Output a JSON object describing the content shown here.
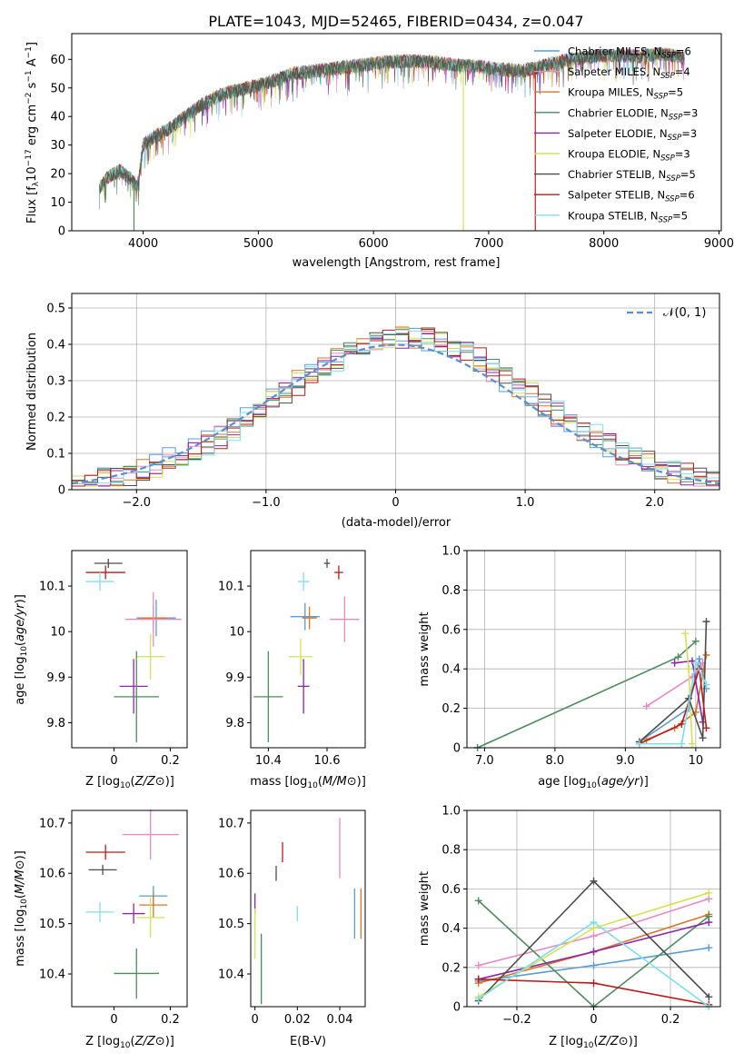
{
  "figure": {
    "title": "PLATE=1043, MJD=52465, FIBERID=0434, z=0.047"
  },
  "legend_entries": [
    {
      "base": "Chabrier MILES, N",
      "sub": "SSP",
      "tail": "=6",
      "color": "#5b9bd5"
    },
    {
      "base": "Salpeter MILES, N",
      "sub": "SSP",
      "tail": "=4",
      "color": "#e78ac3"
    },
    {
      "base": "Kroupa MILES, N",
      "sub": "SSP",
      "tail": "=5",
      "color": "#d6762b"
    },
    {
      "base": "Chabrier ELODIE, N",
      "sub": "SSP",
      "tail": "=3",
      "color": "#4e8a5e"
    },
    {
      "base": "Salpeter ELODIE, N",
      "sub": "SSP",
      "tail": "=3",
      "color": "#8e24aa"
    },
    {
      "base": "Kroupa ELODIE, N",
      "sub": "SSP",
      "tail": "=3",
      "color": "#d4e157"
    },
    {
      "base": "Chabrier STELIB, N",
      "sub": "SSP",
      "tail": "=5",
      "color": "#4d4d4d"
    },
    {
      "base": "Salpeter STELIB, N",
      "sub": "SSP",
      "tail": "=6",
      "color": "#b71c1c"
    },
    {
      "base": "Kroupa STELIB, N",
      "sub": "SSP",
      "tail": "=5",
      "color": "#80deea"
    }
  ],
  "chart_data": [
    {
      "id": "spectrum",
      "type": "line",
      "title": "PLATE=1043, MJD=52465, FIBERID=0434, z=0.047",
      "xlabel": "wavelength [Angstrom, rest frame]",
      "ylabel": "Flux [fλ10⁻¹⁷ erg cm⁻² s⁻¹ A⁻¹]",
      "xlim": [
        3380,
        9020
      ],
      "ylim": [
        0,
        69
      ],
      "xticks": [
        4000,
        5000,
        6000,
        7000,
        8000,
        9000
      ],
      "yticks": [
        0,
        10,
        20,
        30,
        40,
        50,
        60
      ],
      "grid": false,
      "legend": "top-right",
      "continuum": {
        "x": [
          3620,
          3700,
          3800,
          3900,
          3950,
          4000,
          4100,
          4200,
          4300,
          4400,
          4500,
          4700,
          4900,
          5100,
          5300,
          5500,
          5700,
          5900,
          6100,
          6300,
          6500,
          6700,
          6900,
          7100,
          7300,
          7500,
          7700,
          7900,
          8100,
          8300,
          8500,
          8700
        ],
        "y": [
          15,
          19,
          21,
          18,
          15,
          30,
          33,
          35,
          38,
          41,
          44,
          48,
          50,
          52,
          55,
          56,
          57,
          58,
          59,
          59.5,
          59,
          58,
          57.5,
          56.5,
          56,
          58,
          60,
          61,
          61.5,
          61,
          62,
          60.5
        ]
      },
      "drops": [
        {
          "x": 3920,
          "to": 0,
          "color": "#4e8a5e"
        },
        {
          "x": 6780,
          "to": 0,
          "color": "#d4e157"
        },
        {
          "x": 7405,
          "to": 0,
          "color": "#b71c1c"
        }
      ]
    },
    {
      "id": "residuals",
      "type": "area",
      "xlabel": "(data-model)/error",
      "ylabel": "Normed distribution",
      "xlim": [
        -2.5,
        2.5
      ],
      "ylim": [
        0,
        0.54
      ],
      "xticks": [
        -2,
        -1,
        0,
        1,
        2
      ],
      "yticks": [
        0.0,
        0.1,
        0.2,
        0.3,
        0.4,
        0.5
      ],
      "grid": true,
      "legend": "top-right",
      "reference_label": "𝒩(0, 1)",
      "bin_width": 0.1
    },
    {
      "id": "age_vs_Z",
      "type": "scatter",
      "xlabel": "Z [log10(Z/Z⊙)]",
      "ylabel": "age  [log10(age/yr)]",
      "xlim": [
        -0.15,
        0.26
      ],
      "ylim": [
        9.745,
        10.178
      ],
      "xticks": [
        0.0,
        0.2
      ],
      "yticks": [
        9.8,
        9.9,
        10.0,
        10.1
      ],
      "points": [
        {
          "x": -0.02,
          "y": 10.15,
          "xerr": 0.05,
          "yerr": 0.01,
          "color": "#4d4d4d"
        },
        {
          "x": -0.03,
          "y": 10.13,
          "xerr": 0.07,
          "yerr": 0.015,
          "color": "#b71c1c"
        },
        {
          "x": -0.05,
          "y": 10.11,
          "xerr": 0.05,
          "yerr": 0.02,
          "color": "#80deea"
        },
        {
          "x": 0.15,
          "y": 10.03,
          "xerr": 0.07,
          "yerr": 0.04,
          "color": "#5b9bd5"
        },
        {
          "x": 0.14,
          "y": 10.03,
          "xerr": 0.05,
          "yerr": 0.03,
          "color": "#d6762b"
        },
        {
          "x": 0.14,
          "y": 10.027,
          "xerr": 0.1,
          "yerr": 0.06,
          "color": "#e78ac3"
        },
        {
          "x": 0.13,
          "y": 9.945,
          "xerr": 0.05,
          "yerr": 0.05,
          "color": "#d4e157"
        },
        {
          "x": 0.07,
          "y": 9.88,
          "xerr": 0.05,
          "yerr": 0.06,
          "color": "#8e24aa"
        },
        {
          "x": 0.08,
          "y": 9.857,
          "xerr": 0.08,
          "yerr": 0.1,
          "color": "#4e8a5e"
        }
      ]
    },
    {
      "id": "age_vs_mass",
      "type": "scatter",
      "xlabel": "mass [log10(M/M⊙)]",
      "ylabel": "",
      "xlim": [
        10.34,
        10.73
      ],
      "ylim": [
        9.745,
        10.178
      ],
      "xticks": [
        10.4,
        10.6
      ],
      "yticks": [
        9.8,
        9.9,
        10.0,
        10.1
      ],
      "points": [
        {
          "x": 10.6,
          "y": 10.15,
          "xerr": 0.01,
          "yerr": 0.01,
          "color": "#4d4d4d"
        },
        {
          "x": 10.64,
          "y": 10.13,
          "xerr": 0.015,
          "yerr": 0.015,
          "color": "#b71c1c"
        },
        {
          "x": 10.52,
          "y": 10.11,
          "xerr": 0.02,
          "yerr": 0.02,
          "color": "#80deea"
        },
        {
          "x": 10.525,
          "y": 10.033,
          "xerr": 0.05,
          "yerr": 0.03,
          "color": "#5b9bd5"
        },
        {
          "x": 10.54,
          "y": 10.03,
          "xerr": 0.025,
          "yerr": 0.025,
          "color": "#d6762b"
        },
        {
          "x": 10.66,
          "y": 10.027,
          "xerr": 0.05,
          "yerr": 0.05,
          "color": "#e78ac3"
        },
        {
          "x": 10.51,
          "y": 9.945,
          "xerr": 0.04,
          "yerr": 0.04,
          "color": "#d4e157"
        },
        {
          "x": 10.52,
          "y": 9.88,
          "xerr": 0.02,
          "yerr": 0.06,
          "color": "#8e24aa"
        },
        {
          "x": 10.4,
          "y": 9.857,
          "xerr": 0.05,
          "yerr": 0.1,
          "color": "#4e8a5e"
        }
      ]
    },
    {
      "id": "mass_weight_vs_age",
      "type": "line",
      "xlabel": "age  [log10(age/yr)]",
      "ylabel": "mass weight",
      "xlim": [
        6.75,
        10.35
      ],
      "ylim": [
        0,
        1.0
      ],
      "xticks": [
        7,
        8,
        9,
        10
      ],
      "yticks": [
        0.0,
        0.2,
        0.4,
        0.6,
        0.8,
        1.0
      ],
      "grid": true,
      "series": [
        {
          "color": "#5b9bd5",
          "x": [
            9.2,
            9.9,
            10.05,
            10.15
          ],
          "y": [
            0.03,
            0.2,
            0.45,
            0.3
          ]
        },
        {
          "color": "#e78ac3",
          "x": [
            9.3,
            9.95,
            10.1
          ],
          "y": [
            0.21,
            0.36,
            0.43
          ]
        },
        {
          "color": "#d6762b",
          "x": [
            9.3,
            9.7,
            10.0,
            10.15
          ],
          "y": [
            0.04,
            0.1,
            0.18,
            0.47
          ]
        },
        {
          "color": "#4e8a5e",
          "x": [
            6.9,
            9.75,
            10.0
          ],
          "y": [
            0.0,
            0.46,
            0.54
          ]
        },
        {
          "color": "#8e24aa",
          "x": [
            9.7,
            9.95,
            10.1
          ],
          "y": [
            0.43,
            0.44,
            0.13
          ]
        },
        {
          "color": "#d4e157",
          "x": [
            9.85,
            9.9,
            9.95
          ],
          "y": [
            0.58,
            0.4,
            0.02
          ]
        },
        {
          "color": "#4d4d4d",
          "x": [
            9.2,
            9.9,
            10.1,
            10.15
          ],
          "y": [
            0.03,
            0.25,
            0.05,
            0.64
          ]
        },
        {
          "color": "#b71c1c",
          "x": [
            9.2,
            9.8,
            10.05,
            10.15
          ],
          "y": [
            0.02,
            0.12,
            0.4,
            0.1
          ]
        },
        {
          "color": "#80deea",
          "x": [
            9.2,
            9.8,
            10.0,
            10.15
          ],
          "y": [
            0.02,
            0.02,
            0.43,
            0.32
          ]
        }
      ]
    },
    {
      "id": "mass_vs_Z",
      "type": "scatter",
      "xlabel": "Z [log10(Z/Z⊙)]",
      "ylabel": "mass [log10(M/M⊙)]",
      "xlim": [
        -0.15,
        0.26
      ],
      "ylim": [
        10.335,
        10.725
      ],
      "xticks": [
        0.0,
        0.2
      ],
      "yticks": [
        10.4,
        10.5,
        10.6,
        10.7
      ],
      "points": [
        {
          "x": 0.13,
          "y": 10.677,
          "xerr": 0.1,
          "yerr": 0.05,
          "color": "#e78ac3"
        },
        {
          "x": -0.03,
          "y": 10.642,
          "xerr": 0.07,
          "yerr": 0.015,
          "color": "#b71c1c"
        },
        {
          "x": -0.04,
          "y": 10.607,
          "xerr": 0.05,
          "yerr": 0.01,
          "color": "#4d4d4d"
        },
        {
          "x": 0.14,
          "y": 10.555,
          "xerr": 0.05,
          "yerr": 0.02,
          "color": "#5b9bd5"
        },
        {
          "x": 0.14,
          "y": 10.537,
          "xerr": 0.05,
          "yerr": 0.025,
          "color": "#d6762b"
        },
        {
          "x": -0.05,
          "y": 10.523,
          "xerr": 0.05,
          "yerr": 0.02,
          "color": "#80deea"
        },
        {
          "x": 0.07,
          "y": 10.52,
          "xerr": 0.04,
          "yerr": 0.02,
          "color": "#8e24aa"
        },
        {
          "x": 0.13,
          "y": 10.512,
          "xerr": 0.05,
          "yerr": 0.04,
          "color": "#d4e157"
        },
        {
          "x": 0.08,
          "y": 10.401,
          "xerr": 0.08,
          "yerr": 0.05,
          "color": "#4e8a5e"
        }
      ]
    },
    {
      "id": "mass_vs_ebv",
      "type": "scatter",
      "xlabel": "E(B-V)",
      "ylabel": "",
      "xlim": [
        -0.002,
        0.052
      ],
      "ylim": [
        10.335,
        10.725
      ],
      "xticks": [
        0.0,
        0.02,
        0.04
      ],
      "yticks": [
        10.4,
        10.5,
        10.6,
        10.7
      ],
      "points": [
        {
          "x": 0.04,
          "y": 10.65,
          "xerr": 0,
          "yerr": 0.06,
          "color": "#e78ac3"
        },
        {
          "x": 0.013,
          "y": 10.642,
          "xerr": 0,
          "yerr": 0.02,
          "color": "#b71c1c"
        },
        {
          "x": 0.01,
          "y": 10.6,
          "xerr": 0,
          "yerr": 0.015,
          "color": "#4d4d4d"
        },
        {
          "x": 0.047,
          "y": 10.52,
          "xerr": 0,
          "yerr": 0.05,
          "color": "#5b9bd5"
        },
        {
          "x": 0.05,
          "y": 10.52,
          "xerr": 0,
          "yerr": 0.05,
          "color": "#d6762b"
        },
        {
          "x": 0.02,
          "y": 10.52,
          "xerr": 0,
          "yerr": 0.015,
          "color": "#80deea"
        },
        {
          "x": 0.0,
          "y": 10.54,
          "xerr": 0,
          "yerr": 0.02,
          "color": "#8e24aa"
        },
        {
          "x": 0.0,
          "y": 10.48,
          "xerr": 0,
          "yerr": 0.05,
          "color": "#d4e157"
        },
        {
          "x": 0.003,
          "y": 10.41,
          "xerr": 0,
          "yerr": 0.07,
          "color": "#4e8a5e"
        }
      ]
    },
    {
      "id": "mass_weight_vs_Z",
      "type": "line",
      "xlabel": "Z [log10(Z/Z⊙)]",
      "ylabel": "mass weight",
      "xlim": [
        -0.33,
        0.33
      ],
      "ylim": [
        0,
        1.0
      ],
      "xticks": [
        -0.2,
        0.0,
        0.2
      ],
      "yticks": [
        0.0,
        0.2,
        0.4,
        0.6,
        0.8,
        1.0
      ],
      "grid": true,
      "series": [
        {
          "color": "#5b9bd5",
          "x": [
            -0.3,
            0.0,
            0.3
          ],
          "y": [
            0.13,
            0.21,
            0.3
          ]
        },
        {
          "color": "#e78ac3",
          "x": [
            -0.3,
            0.0,
            0.3
          ],
          "y": [
            0.21,
            0.36,
            0.55
          ]
        },
        {
          "color": "#d6762b",
          "x": [
            -0.3,
            0.0,
            0.3
          ],
          "y": [
            0.12,
            0.28,
            0.47
          ]
        },
        {
          "color": "#4e8a5e",
          "x": [
            -0.3,
            0.0,
            0.3
          ],
          "y": [
            0.54,
            0.0,
            0.46
          ]
        },
        {
          "color": "#8e24aa",
          "x": [
            -0.3,
            0.0,
            0.3
          ],
          "y": [
            0.14,
            0.28,
            0.43
          ]
        },
        {
          "color": "#d4e157",
          "x": [
            -0.3,
            0.0,
            0.3
          ],
          "y": [
            0.05,
            0.4,
            0.58
          ]
        },
        {
          "color": "#4d4d4d",
          "x": [
            -0.3,
            0.0,
            0.3
          ],
          "y": [
            0.03,
            0.64,
            0.05
          ]
        },
        {
          "color": "#b71c1c",
          "x": [
            -0.3,
            0.0,
            0.3
          ],
          "y": [
            0.14,
            0.12,
            0.01
          ]
        },
        {
          "color": "#80deea",
          "x": [
            -0.3,
            0.0,
            0.3
          ],
          "y": [
            0.04,
            0.43,
            0.0
          ]
        }
      ]
    }
  ]
}
